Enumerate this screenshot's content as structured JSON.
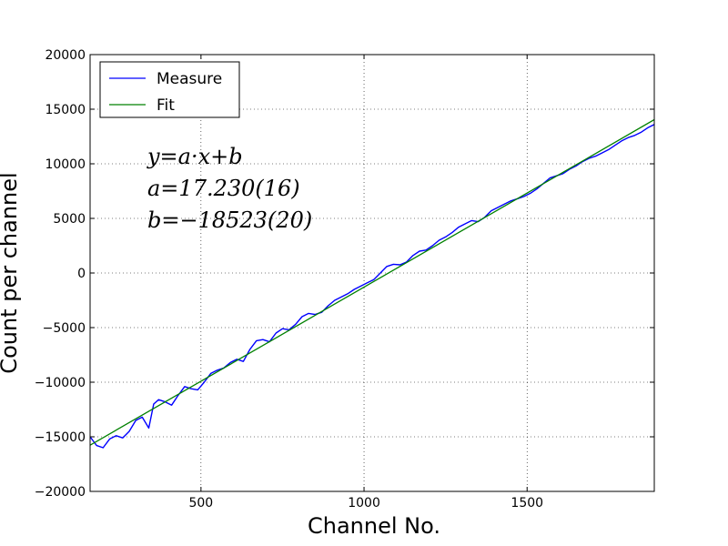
{
  "chart_data": {
    "type": "line",
    "xlabel": "Channel No.",
    "ylabel": "Count per channel",
    "xlim": [
      160,
      1890
    ],
    "ylim": [
      -20000,
      20000
    ],
    "xticks": [
      500,
      1000,
      1500
    ],
    "xtick_labels": [
      "500",
      "1000",
      "1500"
    ],
    "yticks": [
      -20000,
      -15000,
      -10000,
      -5000,
      0,
      5000,
      10000,
      15000,
      20000
    ],
    "ytick_labels": [
      "−20000",
      "−15000",
      "−10000",
      "−5000",
      "0",
      "5000",
      "10000",
      "15000",
      "20000"
    ],
    "grid": true,
    "legend_position": "top-left",
    "series": [
      {
        "name": "Measure",
        "color": "#0000ff",
        "x": [
          160,
          180,
          200,
          220,
          240,
          260,
          280,
          300,
          320,
          340,
          355,
          370,
          390,
          410,
          430,
          450,
          470,
          490,
          510,
          530,
          550,
          570,
          590,
          610,
          630,
          650,
          670,
          690,
          710,
          730,
          750,
          770,
          790,
          810,
          830,
          850,
          870,
          890,
          910,
          930,
          950,
          970,
          990,
          1010,
          1030,
          1050,
          1070,
          1090,
          1110,
          1130,
          1150,
          1170,
          1190,
          1210,
          1230,
          1250,
          1270,
          1290,
          1310,
          1330,
          1350,
          1370,
          1390,
          1410,
          1430,
          1450,
          1470,
          1490,
          1510,
          1530,
          1550,
          1570,
          1590,
          1610,
          1630,
          1650,
          1670,
          1690,
          1710,
          1730,
          1750,
          1770,
          1790,
          1810,
          1830,
          1850,
          1870,
          1890
        ],
        "y": [
          -15000,
          -15800,
          -16000,
          -15200,
          -14900,
          -15100,
          -14500,
          -13500,
          -13200,
          -14200,
          -12000,
          -11600,
          -11800,
          -12100,
          -11200,
          -10400,
          -10600,
          -10700,
          -10000,
          -9200,
          -8900,
          -8700,
          -8200,
          -7900,
          -8100,
          -7000,
          -6200,
          -6100,
          -6300,
          -5500,
          -5100,
          -5200,
          -4700,
          -4000,
          -3700,
          -3800,
          -3600,
          -3000,
          -2500,
          -2200,
          -1900,
          -1500,
          -1200,
          -900,
          -600,
          0,
          600,
          800,
          750,
          1000,
          1600,
          2000,
          2100,
          2500,
          3000,
          3300,
          3700,
          4200,
          4500,
          4800,
          4700,
          5100,
          5700,
          6000,
          6300,
          6600,
          6800,
          7000,
          7300,
          7700,
          8200,
          8700,
          8900,
          9100,
          9500,
          9800,
          10200,
          10500,
          10700,
          11000,
          11300,
          11700,
          12100,
          12400,
          12600,
          12900,
          13300,
          13600
        ]
      },
      {
        "name": "Fit",
        "color": "#008000",
        "slope": 17.23,
        "intercept": -18523,
        "x": [
          160,
          1890
        ],
        "y": [
          -15766.2,
          14041.7
        ]
      }
    ],
    "annotations": [
      "y=a·x+b",
      "a=17.230(16)",
      "b=−18523(20)"
    ]
  }
}
